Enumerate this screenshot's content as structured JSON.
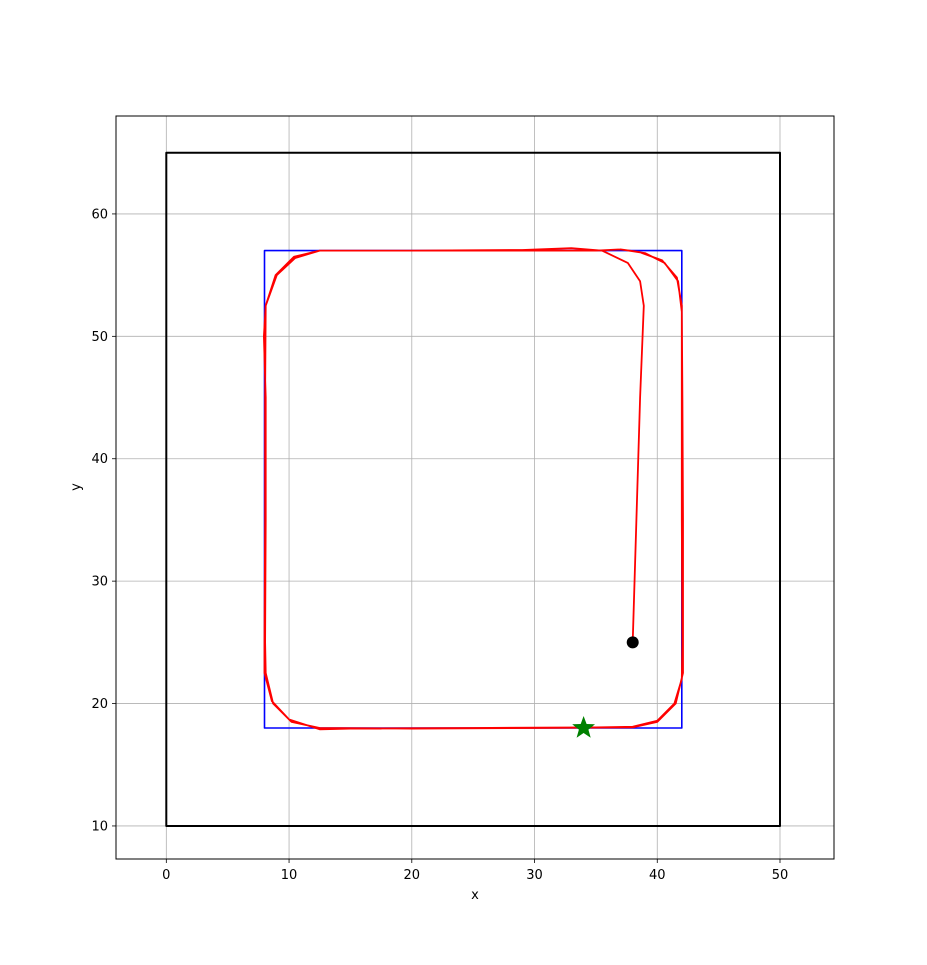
{
  "chart_data": {
    "type": "line",
    "xlabel": "x",
    "ylabel": "y",
    "xlim": [
      -4.1,
      54.4
    ],
    "ylim": [
      7.3,
      68.0
    ],
    "xticks": [
      0,
      10,
      20,
      30,
      40,
      50
    ],
    "yticks": [
      10,
      20,
      30,
      40,
      50,
      60
    ],
    "grid": true,
    "series": [
      {
        "style": "boundary",
        "color": "#000000",
        "points": [
          [
            0,
            10
          ],
          [
            50,
            10
          ],
          [
            50,
            65
          ],
          [
            0,
            65
          ],
          [
            0,
            10
          ]
        ]
      },
      {
        "style": "reference-rectangle",
        "color": "#0000ff",
        "points": [
          [
            8,
            18
          ],
          [
            42,
            18
          ],
          [
            42,
            57
          ],
          [
            8,
            57
          ],
          [
            8,
            18
          ]
        ]
      },
      {
        "style": "trajectory",
        "color": "#ff0000",
        "points": [
          [
            38.0,
            25.0
          ],
          [
            38.3,
            35.0
          ],
          [
            38.6,
            45.0
          ],
          [
            38.9,
            52.5
          ],
          [
            38.6,
            54.5
          ],
          [
            37.6,
            56.0
          ],
          [
            35.5,
            57.0
          ],
          [
            33.0,
            57.2
          ],
          [
            29.0,
            57.05
          ],
          [
            20.0,
            57.0
          ],
          [
            12.5,
            57.0
          ],
          [
            10.5,
            56.4
          ],
          [
            9.0,
            55.0
          ],
          [
            8.1,
            52.5
          ],
          [
            8.05,
            45.0
          ],
          [
            8.05,
            35.0
          ],
          [
            8.0,
            25.0
          ],
          [
            8.0,
            22.5
          ],
          [
            8.6,
            20.2
          ],
          [
            10.0,
            18.7
          ],
          [
            12.5,
            17.9
          ],
          [
            15.0,
            17.95
          ],
          [
            25.0,
            18.0
          ],
          [
            35.0,
            18.05
          ],
          [
            38.0,
            18.1
          ],
          [
            40.0,
            18.6
          ],
          [
            41.4,
            20.0
          ],
          [
            42.0,
            22.0
          ],
          [
            42.05,
            25.0
          ],
          [
            42.0,
            35.0
          ],
          [
            42.0,
            45.0
          ],
          [
            42.0,
            52.5
          ],
          [
            41.6,
            54.8
          ],
          [
            40.4,
            56.2
          ],
          [
            38.5,
            56.9
          ],
          [
            37.0,
            57.1
          ],
          [
            35.0,
            57.0
          ],
          [
            29.0,
            57.0
          ],
          [
            20.0,
            57.0
          ],
          [
            12.5,
            57.0
          ],
          [
            10.4,
            56.5
          ],
          [
            8.9,
            55.0
          ],
          [
            8.1,
            52.5
          ],
          [
            7.95,
            50.0
          ],
          [
            8.1,
            45.0
          ],
          [
            8.1,
            35.0
          ],
          [
            8.05,
            25.0
          ],
          [
            8.1,
            22.5
          ],
          [
            8.7,
            20.0
          ],
          [
            10.2,
            18.5
          ],
          [
            12.5,
            18.0
          ],
          [
            20.0,
            17.95
          ],
          [
            30.0,
            18.0
          ],
          [
            38.0,
            18.05
          ],
          [
            40.0,
            18.5
          ],
          [
            41.5,
            20.0
          ],
          [
            42.1,
            22.5
          ],
          [
            42.1,
            35.0
          ],
          [
            42.05,
            45.0
          ],
          [
            42.0,
            52.0
          ],
          [
            41.7,
            54.5
          ],
          [
            40.6,
            56.0
          ],
          [
            39.0,
            56.8
          ],
          [
            37.0,
            57.1
          ]
        ]
      }
    ],
    "markers": [
      {
        "type": "start",
        "shape": "circle",
        "color": "#000000",
        "x": 38,
        "y": 25
      },
      {
        "type": "goal",
        "shape": "star",
        "color": "#008000",
        "x": 34,
        "y": 18
      }
    ]
  }
}
